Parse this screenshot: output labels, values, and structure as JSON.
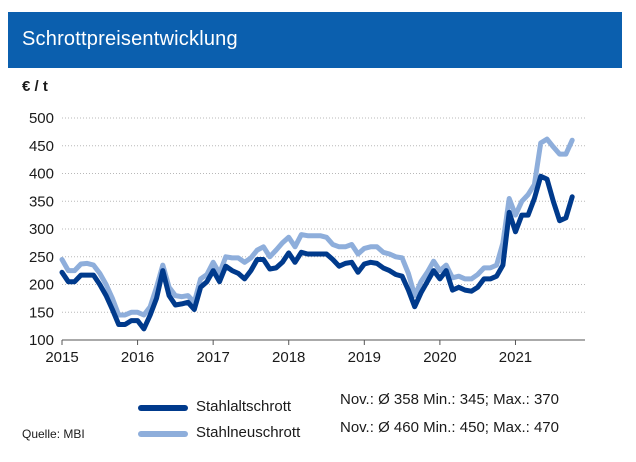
{
  "header": {
    "title": "Schrottpreisentwicklung"
  },
  "unit_label": "€ / t",
  "source": "Quelle: MBI",
  "colors": {
    "banner": "#0b5fae",
    "stahlaltschrott": "#003a8c",
    "stahlneuschrott": "#8eaedb"
  },
  "legend": [
    {
      "label": "Stahlaltschrott",
      "stats": "Nov.: Ø 358  Min.: 345; Max.: 370"
    },
    {
      "label": "Stahlneuschrott",
      "stats": "Nov.: Ø 460  Min.: 450; Max.: 470"
    }
  ],
  "chart_data": {
    "type": "line",
    "title": "Schrottpreisentwicklung",
    "ylabel": "€ / t",
    "xlabel": "",
    "ylim": [
      100,
      500
    ],
    "yticks": [
      100,
      150,
      200,
      250,
      300,
      350,
      400,
      450,
      500
    ],
    "xlim": [
      2015.0,
      2021.92
    ],
    "xticks": [
      2015,
      2016,
      2017,
      2018,
      2019,
      2020,
      2021
    ],
    "grid": "horizontal",
    "series": [
      {
        "name": "Stahlaltschrott",
        "start": 2015.0,
        "step_months": 1,
        "values": [
          222,
          205,
          205,
          217,
          217,
          217,
          200,
          180,
          155,
          128,
          128,
          135,
          135,
          120,
          145,
          175,
          225,
          180,
          163,
          165,
          168,
          155,
          195,
          205,
          225,
          205,
          233,
          225,
          220,
          210,
          225,
          245,
          245,
          228,
          230,
          240,
          257,
          240,
          258,
          255,
          255,
          255,
          255,
          245,
          233,
          238,
          240,
          222,
          237,
          240,
          238,
          230,
          225,
          218,
          215,
          190,
          160,
          185,
          205,
          225,
          210,
          225,
          190,
          195,
          190,
          188,
          195,
          210,
          210,
          215,
          235,
          330,
          295,
          325,
          325,
          355,
          395,
          390,
          350,
          315,
          320,
          358
        ]
      },
      {
        "name": "Stahlneuschrott",
        "start": 2015.0,
        "step_months": 1,
        "values": [
          245,
          225,
          225,
          237,
          238,
          235,
          220,
          200,
          175,
          145,
          145,
          150,
          150,
          145,
          160,
          195,
          235,
          195,
          180,
          178,
          180,
          168,
          210,
          218,
          240,
          220,
          250,
          248,
          248,
          240,
          248,
          262,
          268,
          250,
          262,
          275,
          285,
          268,
          290,
          288,
          288,
          288,
          285,
          272,
          268,
          268,
          272,
          255,
          265,
          268,
          268,
          258,
          255,
          250,
          248,
          220,
          180,
          205,
          222,
          242,
          225,
          235,
          212,
          215,
          210,
          210,
          218,
          230,
          230,
          235,
          275,
          355,
          325,
          350,
          362,
          380,
          455,
          462,
          448,
          435,
          435,
          460
        ]
      }
    ]
  }
}
